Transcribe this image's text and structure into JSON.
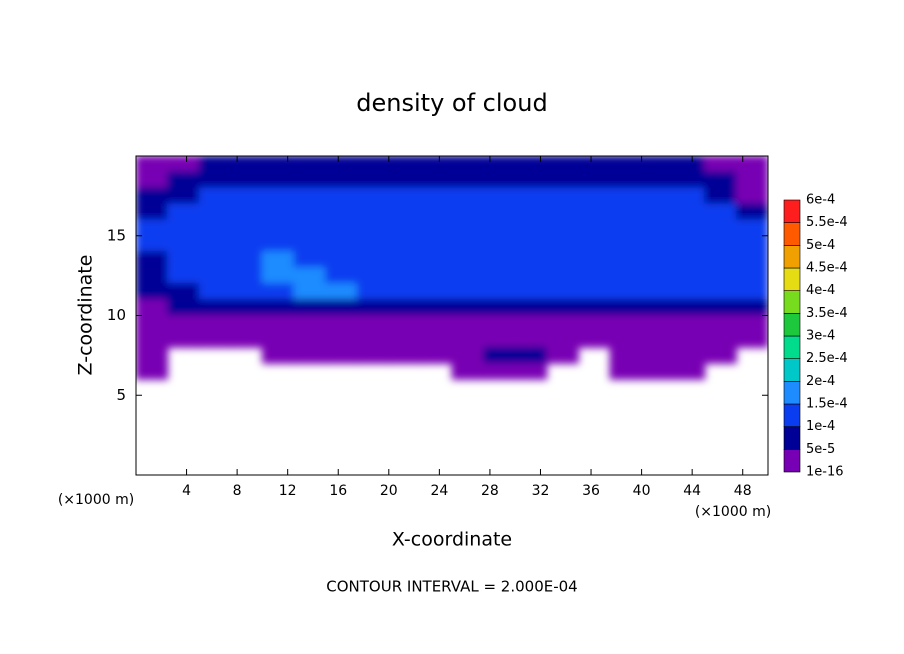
{
  "chart_data": {
    "type": "contour",
    "title": "density of cloud",
    "x_label": "X-coordinate",
    "y_label": "Z-coordinate",
    "x_unit": "(×1000 m)",
    "y_unit": "(×1000 m)",
    "footer": "CONTOUR INTERVAL = 2.000E-04",
    "xlim": [
      0,
      50
    ],
    "ylim": [
      0,
      20
    ],
    "xticks": [
      4,
      8,
      12,
      16,
      20,
      24,
      28,
      32,
      36,
      40,
      44,
      48
    ],
    "yticks": [
      5,
      10,
      15
    ],
    "x": [
      1.25,
      3.75,
      6.25,
      8.75,
      11.25,
      13.75,
      16.25,
      18.75,
      21.25,
      23.75,
      26.25,
      28.75,
      31.25,
      33.75,
      36.25,
      38.75,
      41.25,
      43.75,
      46.25,
      48.75
    ],
    "z": [
      19.5,
      18.5,
      17.5,
      16.5,
      15.5,
      14.5,
      13.5,
      12.5,
      11.5,
      10.5,
      9.5,
      8.5,
      7.5,
      6.5
    ],
    "values": [
      [
        4e-05,
        4e-05,
        6e-05,
        6e-05,
        6e-05,
        6e-05,
        6e-05,
        6e-05,
        6e-05,
        6e-05,
        6e-05,
        6e-05,
        6e-05,
        6e-05,
        6e-05,
        6e-05,
        6e-05,
        6e-05,
        4e-05,
        4e-05
      ],
      [
        4e-05,
        7e-05,
        7e-05,
        7e-05,
        7e-05,
        7e-05,
        7e-05,
        7e-05,
        7e-05,
        7e-05,
        7e-05,
        7e-05,
        7e-05,
        7e-05,
        7e-05,
        7e-05,
        7e-05,
        7e-05,
        7e-05,
        4e-05
      ],
      [
        7e-05,
        7e-05,
        0.00011,
        0.00011,
        0.00011,
        0.00011,
        0.00011,
        0.00011,
        0.00011,
        0.00011,
        0.00011,
        0.00011,
        0.00011,
        0.00011,
        0.00011,
        0.00011,
        0.00011,
        0.00011,
        7e-05,
        4e-05
      ],
      [
        7e-05,
        0.00011,
        0.00012,
        0.00013,
        0.00013,
        0.00013,
        0.00013,
        0.00013,
        0.00013,
        0.00013,
        0.00013,
        0.00013,
        0.00013,
        0.00013,
        0.00013,
        0.00012,
        0.00012,
        0.00012,
        0.00011,
        7e-05
      ],
      [
        0.00011,
        0.00012,
        0.00012,
        0.00013,
        0.00013,
        0.00013,
        0.00013,
        0.00013,
        0.00013,
        0.00013,
        0.00013,
        0.00013,
        0.00013,
        0.00013,
        0.00013,
        0.00013,
        0.00012,
        0.00012,
        0.00012,
        0.00011
      ],
      [
        0.00011,
        0.00012,
        0.00012,
        0.00013,
        0.00013,
        0.00013,
        0.00013,
        0.00013,
        0.00013,
        0.00013,
        0.00013,
        0.00013,
        0.00013,
        0.00013,
        0.00013,
        0.00013,
        0.00013,
        0.00012,
        0.00012,
        0.00011
      ],
      [
        7e-05,
        0.00011,
        0.00012,
        0.00012,
        0.00016,
        0.00013,
        0.00012,
        0.00012,
        0.00012,
        0.00012,
        0.00012,
        0.00012,
        0.00012,
        0.00012,
        0.00012,
        0.00012,
        0.00012,
        0.00012,
        0.00012,
        0.00011
      ],
      [
        7e-05,
        0.00011,
        0.00011,
        0.00012,
        0.00016,
        0.00016,
        0.00013,
        0.00012,
        0.00013,
        0.00012,
        0.00012,
        0.00012,
        0.00012,
        0.00012,
        0.00012,
        0.00012,
        0.00012,
        0.00012,
        0.00011,
        0.00011
      ],
      [
        7e-05,
        7e-05,
        0.00011,
        0.00011,
        0.00012,
        0.00016,
        0.00016,
        0.00011,
        0.00011,
        0.00011,
        0.00011,
        0.00011,
        0.00011,
        0.00011,
        0.00011,
        0.00011,
        0.00011,
        0.00011,
        0.00011,
        0.00011
      ],
      [
        4e-05,
        7e-05,
        7e-05,
        7e-05,
        7e-05,
        7e-05,
        7e-05,
        7e-05,
        7e-05,
        7e-05,
        7e-05,
        7e-05,
        7e-05,
        7e-05,
        7e-05,
        7e-05,
        7e-05,
        7e-05,
        7e-05,
        7e-05
      ],
      [
        1e-05,
        1e-05,
        1e-05,
        1e-05,
        1e-05,
        1e-05,
        1e-05,
        1e-05,
        1e-05,
        1e-05,
        1e-05,
        1e-05,
        1e-05,
        1e-05,
        1e-05,
        1e-05,
        1e-05,
        1e-05,
        1e-05,
        1e-05
      ],
      [
        1e-05,
        1e-05,
        1e-05,
        1e-05,
        1e-05,
        1e-05,
        1e-05,
        1e-05,
        1e-05,
        1e-05,
        1e-05,
        1e-05,
        1e-05,
        1e-05,
        1e-05,
        1e-05,
        1e-05,
        1e-05,
        1e-05,
        1e-05
      ],
      [
        1e-05,
        null,
        null,
        null,
        1e-05,
        1e-05,
        1e-05,
        1e-05,
        1e-05,
        1e-05,
        1e-05,
        6e-05,
        6e-05,
        1e-05,
        null,
        1e-05,
        1e-05,
        1e-05,
        1e-05,
        null
      ],
      [
        1e-05,
        null,
        null,
        null,
        null,
        null,
        null,
        null,
        null,
        null,
        1e-05,
        1e-05,
        1e-05,
        null,
        null,
        1e-05,
        1e-05,
        1e-05,
        null,
        null
      ]
    ],
    "levels": [
      {
        "value": 1e-16,
        "label": "1e-16"
      },
      {
        "value": 5e-05,
        "label": "5e-5"
      },
      {
        "value": 0.0001,
        "label": "1e-4"
      },
      {
        "value": 0.00015,
        "label": "1.5e-4"
      },
      {
        "value": 0.0002,
        "label": "2e-4"
      },
      {
        "value": 0.00025,
        "label": "2.5e-4"
      },
      {
        "value": 0.0003,
        "label": "3e-4"
      },
      {
        "value": 0.00035,
        "label": "3.5e-4"
      },
      {
        "value": 0.0004,
        "label": "4e-4"
      },
      {
        "value": 0.00045,
        "label": "4.5e-4"
      },
      {
        "value": 0.0005,
        "label": "5e-4"
      },
      {
        "value": 0.00055,
        "label": "5.5e-4"
      },
      {
        "value": 0.0006,
        "label": "6e-4"
      }
    ],
    "colors": [
      "#7800b4",
      "#000096",
      "#0a3cf0",
      "#1e8cff",
      "#00c8c8",
      "#00dc8c",
      "#1ec83c",
      "#78dc1e",
      "#e6dc14",
      "#f0a000",
      "#ff5a00",
      "#ff1e1e",
      "#ff8c8c"
    ]
  }
}
